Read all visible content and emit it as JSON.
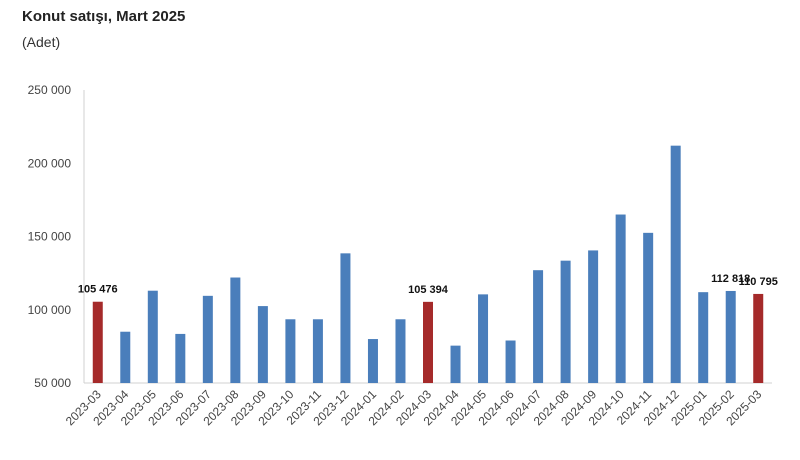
{
  "title": "Konut satışı, Mart 2025",
  "subtitle": "(Adet)",
  "colors": {
    "primary": "#4a7ebb",
    "highlight": "#a52a2a"
  },
  "chart_data": {
    "type": "bar",
    "title": "Konut satışı, Mart 2025",
    "subtitle": "(Adet)",
    "ylim": [
      50000,
      250000
    ],
    "y_ticks": [
      50000,
      100000,
      150000,
      200000,
      250000
    ],
    "y_tick_labels": [
      "50 000",
      "100 000",
      "150 000",
      "200 000",
      "250 000"
    ],
    "grid": false,
    "categories": [
      "2023-03",
      "2023-04",
      "2023-05",
      "2023-06",
      "2023-07",
      "2023-08",
      "2023-09",
      "2023-10",
      "2023-11",
      "2023-12",
      "2024-01",
      "2024-02",
      "2024-03",
      "2024-04",
      "2024-05",
      "2024-06",
      "2024-07",
      "2024-08",
      "2024-09",
      "2024-10",
      "2024-11",
      "2024-12",
      "2025-01",
      "2025-02",
      "2025-03"
    ],
    "values": [
      105476,
      85000,
      113000,
      83500,
      109500,
      122000,
      102500,
      93500,
      93500,
      138500,
      80000,
      93500,
      105394,
      75500,
      110500,
      79000,
      127000,
      133500,
      140500,
      165000,
      152500,
      212000,
      112000,
      112818,
      110795
    ],
    "highlighted": [
      "2023-03",
      "2024-03",
      "2025-03"
    ],
    "data_labels": [
      {
        "category": "2023-03",
        "text": "105 476"
      },
      {
        "category": "2024-03",
        "text": "105 394"
      },
      {
        "category": "2025-02",
        "text": "112 818"
      },
      {
        "category": "2025-03",
        "text": "110 795"
      }
    ]
  }
}
